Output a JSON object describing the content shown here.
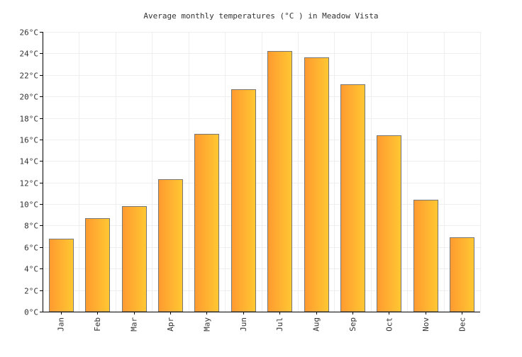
{
  "chart_data": {
    "type": "bar",
    "title": "Average monthly temperatures (°C ) in Meadow Vista",
    "xlabel": "",
    "ylabel": "",
    "categories": [
      "Jan",
      "Feb",
      "Mar",
      "Apr",
      "May",
      "Jun",
      "Jul",
      "Aug",
      "Sep",
      "Oct",
      "Nov",
      "Dec"
    ],
    "values": [
      6.8,
      8.7,
      9.8,
      12.3,
      16.5,
      20.7,
      24.2,
      23.6,
      21.1,
      16.4,
      10.4,
      6.9
    ],
    "ylim": [
      0,
      26
    ],
    "yticks": [
      0,
      2,
      4,
      6,
      8,
      10,
      12,
      14,
      16,
      18,
      20,
      22,
      24,
      26
    ],
    "ytick_suffix": "°C",
    "grid": true,
    "legend": "none",
    "colors": {
      "bar_gradient_start": "#ff9a30",
      "bar_gradient_end": "#ffc832",
      "bar_border": "#777777",
      "grid": "#eeeeee",
      "axis": "#000000"
    }
  }
}
